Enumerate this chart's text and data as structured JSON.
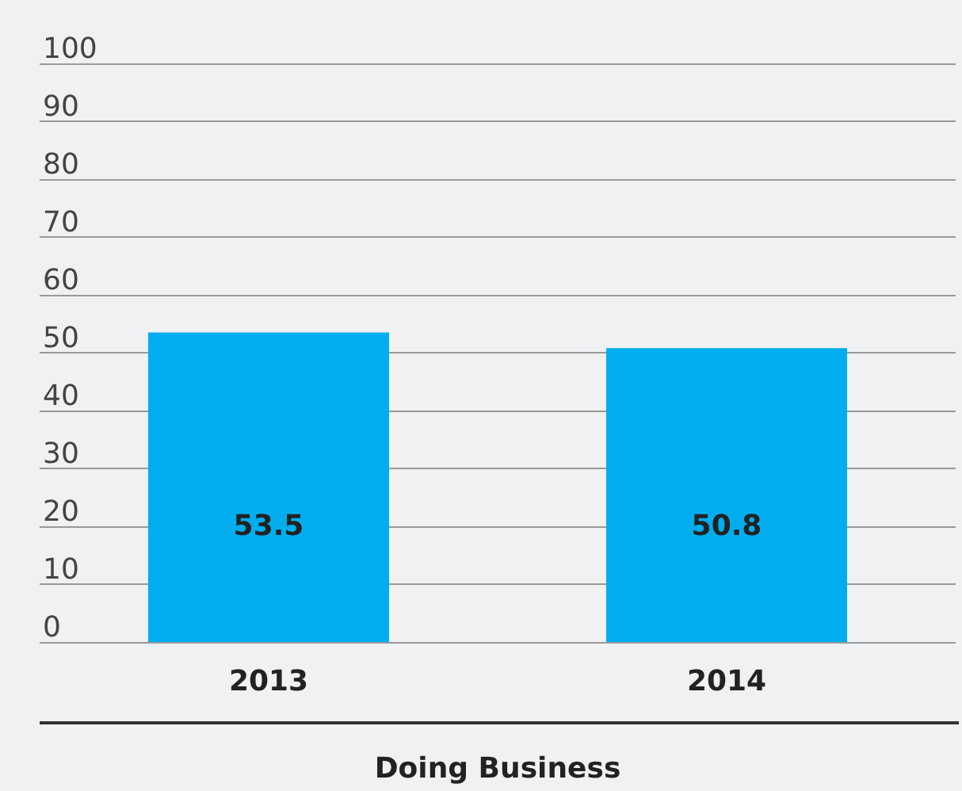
{
  "chart_data": {
    "type": "bar",
    "xlabel": "Doing Business",
    "categories": [
      "2013",
      "2014"
    ],
    "values": [
      53.5,
      50.8
    ],
    "color": "#00aeef",
    "ylim": [
      0,
      100
    ],
    "yticks": [
      0,
      10,
      20,
      30,
      40,
      50,
      60,
      70,
      80,
      90,
      100
    ],
    "grid": "y",
    "data_labels": true
  }
}
